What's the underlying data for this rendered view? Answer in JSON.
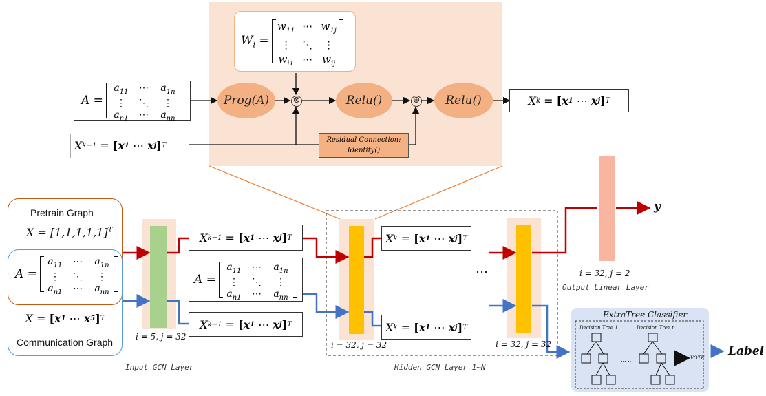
{
  "colors": {
    "top_panel": "#fbe3d4",
    "oval": "#f2b083",
    "residual_box": "#f4b183",
    "green_layer": "#a9d18e",
    "yellow_layer": "#ffc000",
    "output_layer": "#f8b5a0",
    "arrow_red": "#c00000",
    "arrow_blue": "#4472c4",
    "pretrain_border": "#c55a11",
    "comm_border": "#5b9bd5",
    "classifier_bg": "#dae3f3"
  },
  "top_panel": {
    "weight_matrix": {
      "lhs": "W",
      "lhs_sub": "i",
      "cells": [
        "w11",
        "⋯",
        "w1j",
        "⋮",
        "⋱",
        "⋮",
        "wi1",
        "⋯",
        "wij"
      ]
    },
    "adjacency": {
      "lhs": "A",
      "cells": [
        "a11",
        "⋯",
        "a1n",
        "⋮",
        "⋱",
        "⋮",
        "an1",
        "⋯",
        "ann"
      ]
    },
    "prog_label": "Prog(A)",
    "relu1_label": "Relu()",
    "relu2_label": "Relu()",
    "otimes": "⊗",
    "oplus": "⊕",
    "residual_line1": "Residual Connection:",
    "residual_line2": "Identity()",
    "input_x": {
      "lhs": "X",
      "sub": "k−1",
      "x1": "x",
      "x1_sub": "1",
      "dots": "⋯",
      "xj": "x",
      "xj_sub": "j",
      "sup": "T"
    },
    "output_x": {
      "lhs": "X",
      "sub": "k",
      "x1": "x",
      "x1_sub": "1",
      "dots": "⋯",
      "xj": "x",
      "xj_sub": "j",
      "sup": "T"
    }
  },
  "pretrain": {
    "title": "Pretrain Graph",
    "x_label": "X = [1,1,1,1,1]",
    "x_sup": "T",
    "adjacency": {
      "lhs": "A",
      "cells": [
        "a11",
        "⋯",
        "a1n",
        "⋮",
        "⋱",
        "⋮",
        "an1",
        "⋯",
        "ann"
      ]
    }
  },
  "communication": {
    "title": "Communication Graph",
    "x_lhs": "X",
    "x_vec": "x",
    "x1_sub": "1",
    "dots": "⋯",
    "x5_sub": "5",
    "x_sup": "T"
  },
  "input_layer": {
    "dims": "i = 5, j = 32",
    "caption": "Input GCN Layer"
  },
  "middle": {
    "upper_x": {
      "lhs": "X",
      "sub": "k−1"
    },
    "adjacency": {
      "lhs": "A",
      "cells": [
        "a11",
        "⋯",
        "a1n",
        "⋮",
        "⋱",
        "⋮",
        "an1",
        "⋯",
        "ann"
      ]
    },
    "lower_x": {
      "lhs": "X",
      "sub": "k−1"
    }
  },
  "hidden": {
    "upper_x": {
      "lhs": "X",
      "sub": "k"
    },
    "lower_x": {
      "lhs": "X",
      "sub": "k"
    },
    "dims_first": "i = 32, j = 32",
    "dims_last": "i = 32, j = 32",
    "ellipsis": "⋯",
    "caption": "Hidden GCN Layer 1~N"
  },
  "output": {
    "dims": "i = 32, j = 2",
    "caption": "Output Linear Layer",
    "y_label": "y"
  },
  "classifier": {
    "title": "ExtraTree Classifier",
    "tree1": "Decision Tree 1",
    "treen": "Decision Tree n",
    "dots": "... ...",
    "vote": "VOTE",
    "label": "Label"
  }
}
